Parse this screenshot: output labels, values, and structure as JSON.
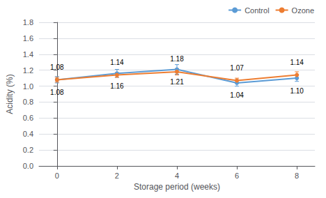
{
  "chart_data": {
    "type": "line",
    "x": [
      0,
      2,
      4,
      6,
      8
    ],
    "series": [
      {
        "name": "Control",
        "color": "#5B9BD5",
        "marker": "circle",
        "values": [
          1.08,
          1.16,
          1.21,
          1.04,
          1.1
        ],
        "errors": [
          0.04,
          0.05,
          0.06,
          0.04,
          0.04
        ],
        "value_labels": [
          "1.08",
          "1.16",
          "1.21",
          "1.04",
          "1.10"
        ]
      },
      {
        "name": "Ozone",
        "color": "#ED7D31",
        "marker": "circle",
        "values": [
          1.08,
          1.14,
          1.18,
          1.07,
          1.14
        ],
        "errors": [
          0.03,
          0.03,
          0.04,
          0.03,
          0.04
        ],
        "value_labels": [
          "1.08",
          "1.14",
          "1.18",
          "1.07",
          "1.14"
        ]
      }
    ],
    "xlabel": "Storage period (weeks)",
    "ylabel": "Acidity (%)",
    "xlim": [
      -0.6,
      8.6
    ],
    "xticks": [
      0,
      2,
      4,
      6,
      8
    ],
    "ylim": [
      0.0,
      1.8
    ],
    "yticks": [
      {
        "value": 0.0,
        "label": "0.0"
      },
      0.2,
      0.4,
      0.6,
      0.8,
      {
        "value": 1.0,
        "label": "1.0"
      },
      1.2,
      1.4,
      1.6,
      1.8
    ],
    "data_labels": true,
    "grid": true,
    "legend": "upper right"
  }
}
